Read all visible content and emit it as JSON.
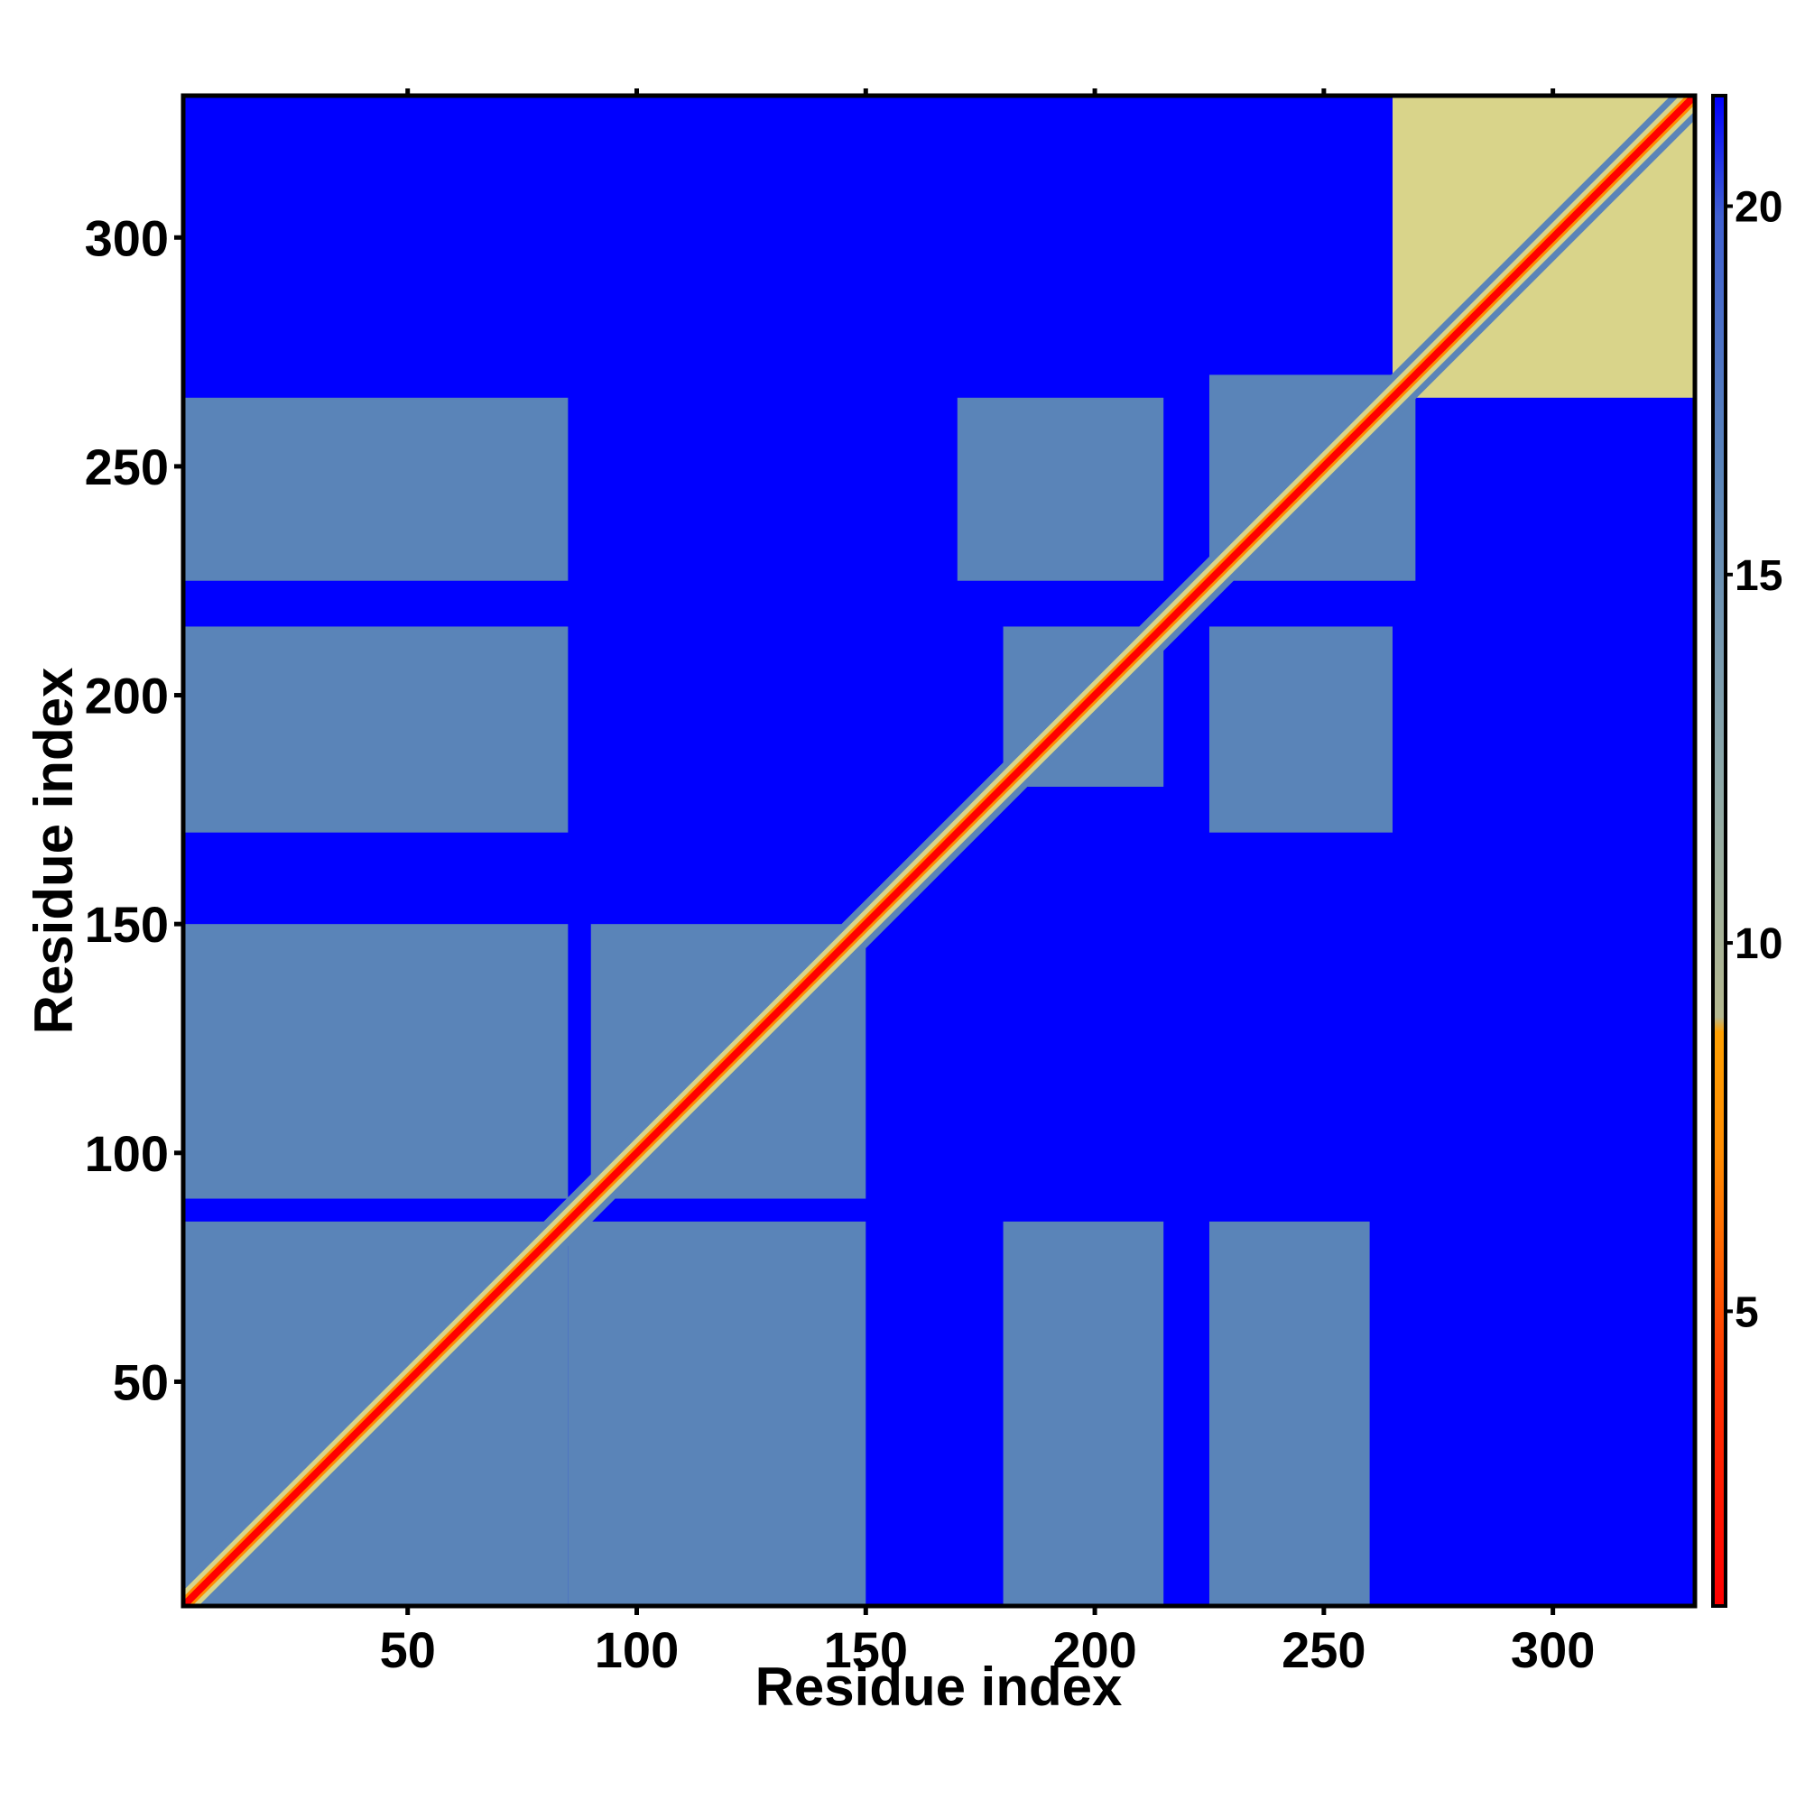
{
  "chart_data": {
    "type": "heatmap",
    "title": "",
    "xlabel": "Residue index",
    "ylabel": "Residue index",
    "xlim": [
      1,
      331
    ],
    "ylim": [
      1,
      331
    ],
    "x_ticks": [
      50,
      100,
      150,
      200,
      250,
      300
    ],
    "y_ticks": [
      50,
      100,
      150,
      200,
      250,
      300
    ],
    "colorbar": {
      "range": [
        1,
        21.5
      ],
      "ticks": [
        5,
        10,
        15,
        20
      ],
      "colors": {
        "very_low": "#ff0000",
        "low": "#ff8c00",
        "mid": "#d9d48a",
        "high": "#5a84b8",
        "max": "#0000ff"
      }
    },
    "grid": false,
    "legend": "colorbar-right",
    "value_description": "pairwise residue distance",
    "blocks": [
      {
        "x": [
          1,
          85
        ],
        "y": [
          1,
          85
        ],
        "value": 14
      },
      {
        "x": [
          1,
          85
        ],
        "y": [
          90,
          150
        ],
        "value": 16
      },
      {
        "x": [
          85,
          150
        ],
        "y": [
          1,
          85
        ],
        "value": 16
      },
      {
        "x": [
          90,
          150
        ],
        "y": [
          90,
          150
        ],
        "value": 13
      },
      {
        "x": [
          180,
          215
        ],
        "y": [
          180,
          215
        ],
        "value": 13
      },
      {
        "x": [
          225,
          270
        ],
        "y": [
          225,
          270
        ],
        "value": 13
      },
      {
        "x": [
          265,
          331
        ],
        "y": [
          265,
          331
        ],
        "value": 12
      },
      {
        "x": [
          225,
          265
        ],
        "y": [
          170,
          215
        ],
        "value": 16
      },
      {
        "x": [
          170,
          215
        ],
        "y": [
          225,
          265
        ],
        "value": 16
      },
      {
        "x": [
          1,
          85
        ],
        "y": [
          170,
          215
        ],
        "value": 18
      },
      {
        "x": [
          1,
          85
        ],
        "y": [
          225,
          265
        ],
        "value": 18
      },
      {
        "x": [
          180,
          215
        ],
        "y": [
          1,
          85
        ],
        "value": 18
      },
      {
        "x": [
          225,
          260
        ],
        "y": [
          1,
          85
        ],
        "value": 18
      }
    ],
    "diagonal_value": 2
  }
}
